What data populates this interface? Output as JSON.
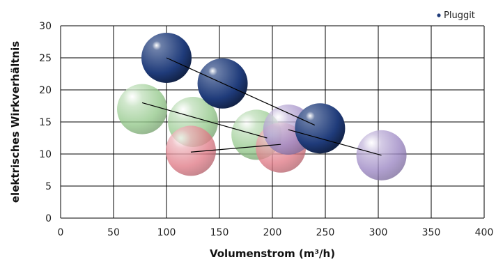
{
  "chart_data": {
    "type": "scatter",
    "title": "",
    "xlabel": "Volumenstrom (m³/h)",
    "ylabel": "elektrisches Wirkverhältnis",
    "xlim": [
      0,
      400
    ],
    "ylim": [
      0,
      30
    ],
    "x_ticks": [
      "0",
      "50",
      "100",
      "150",
      "200",
      "250",
      "300",
      "350",
      "400"
    ],
    "y_ticks": [
      "0",
      "5",
      "10",
      "15",
      "20",
      "25",
      "30"
    ],
    "grid": true,
    "legend": {
      "placement": "top-right",
      "entries": [
        {
          "label": "Pluggit",
          "color": "#1f3b7a"
        }
      ]
    },
    "series": [
      {
        "name": "Pluggit",
        "color": "#1f3b7a",
        "bubbles": [
          {
            "x": 100,
            "y": 25
          },
          {
            "x": 153,
            "y": 21
          },
          {
            "x": 245,
            "y": 14
          }
        ],
        "trend": [
          [
            100,
            25
          ],
          [
            240,
            14.5
          ]
        ]
      },
      {
        "color": "#9b86c3",
        "bubbles": [
          {
            "x": 215,
            "y": 13.8
          },
          {
            "x": 303,
            "y": 9.8
          }
        ],
        "trend": [
          [
            215,
            13.8
          ],
          [
            303,
            9.8
          ]
        ]
      },
      {
        "color": "#93c88a",
        "bubbles": [
          {
            "x": 77,
            "y": 17
          },
          {
            "x": 125,
            "y": 15
          },
          {
            "x": 185,
            "y": 13
          }
        ],
        "trend": [
          [
            77,
            18
          ],
          [
            195,
            12.5
          ]
        ]
      },
      {
        "color": "#e07b87",
        "bubbles": [
          {
            "x": 123,
            "y": 10.5
          },
          {
            "x": 208,
            "y": 11
          }
        ],
        "trend": [
          [
            123,
            10.3
          ],
          [
            208,
            11.5
          ]
        ]
      }
    ]
  }
}
